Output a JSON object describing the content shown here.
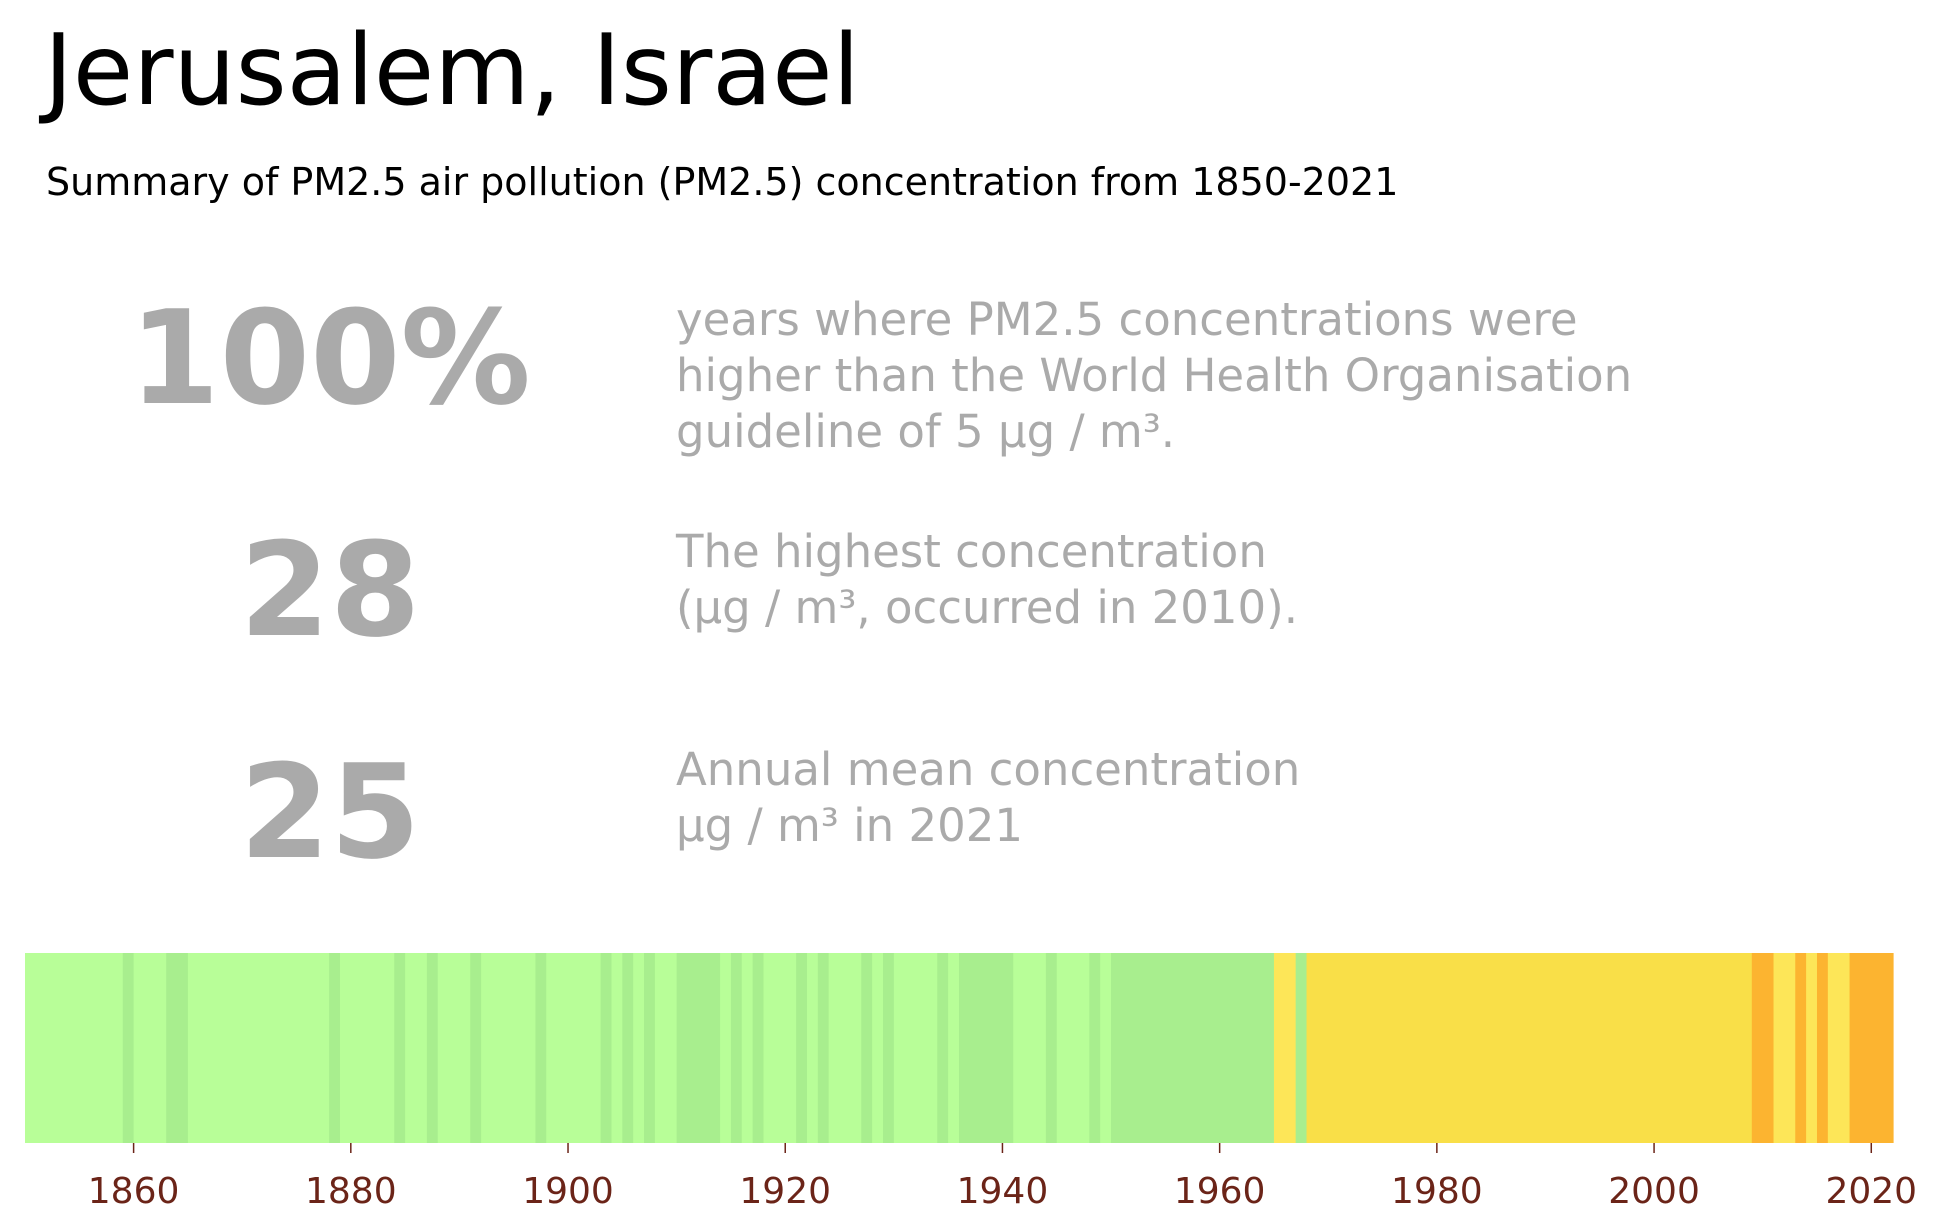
{
  "title": "Jerusalem, Israel",
  "subtitle": "Summary of PM2.5 air pollution (PM2.5) concentration from 1850-2021",
  "stats": [
    {
      "value": "100%",
      "lines": [
        "years where PM2.5 concentrations were",
        "higher than the World Health Organisation",
        "guideline of 5 µg / m³."
      ]
    },
    {
      "value": "28",
      "lines": [
        "The highest concentration",
        "(µg / m³, occurred in 2010)."
      ]
    },
    {
      "value": "25",
      "lines": [
        "Annual mean concentration",
        "µg / m³ in 2021"
      ]
    }
  ],
  "colors": {
    "light_green": "#b8fe98",
    "green": "#a8ee8e",
    "yellow": "#f9df48",
    "light_yellow": "#fde658",
    "orange": "#fcb430",
    "light_orange": "#fec33a",
    "tick_text": "#6b2418",
    "stat_text": "#aaaaaa"
  },
  "chart_data": {
    "type": "heatmap",
    "x_range": [
      1850,
      2022
    ],
    "x_ticks": [
      "1860",
      "1880",
      "1900",
      "1920",
      "1940",
      "1960",
      "1980",
      "2000",
      "2020"
    ],
    "stripes": [
      {
        "from": 1850,
        "to": 1859,
        "color": "light_green"
      },
      {
        "from": 1859,
        "to": 1860,
        "color": "green"
      },
      {
        "from": 1860,
        "to": 1863,
        "color": "light_green"
      },
      {
        "from": 1863,
        "to": 1865,
        "color": "green"
      },
      {
        "from": 1865,
        "to": 1878,
        "color": "light_green"
      },
      {
        "from": 1878,
        "to": 1879,
        "color": "green"
      },
      {
        "from": 1879,
        "to": 1884,
        "color": "light_green"
      },
      {
        "from": 1884,
        "to": 1885,
        "color": "green"
      },
      {
        "from": 1885,
        "to": 1887,
        "color": "light_green"
      },
      {
        "from": 1887,
        "to": 1888,
        "color": "green"
      },
      {
        "from": 1888,
        "to": 1891,
        "color": "light_green"
      },
      {
        "from": 1891,
        "to": 1892,
        "color": "green"
      },
      {
        "from": 1892,
        "to": 1897,
        "color": "light_green"
      },
      {
        "from": 1897,
        "to": 1898,
        "color": "green"
      },
      {
        "from": 1898,
        "to": 1903,
        "color": "light_green"
      },
      {
        "from": 1903,
        "to": 1904,
        "color": "green"
      },
      {
        "from": 1904,
        "to": 1905,
        "color": "light_green"
      },
      {
        "from": 1905,
        "to": 1906,
        "color": "green"
      },
      {
        "from": 1906,
        "to": 1907,
        "color": "light_green"
      },
      {
        "from": 1907,
        "to": 1908,
        "color": "green"
      },
      {
        "from": 1908,
        "to": 1910,
        "color": "light_green"
      },
      {
        "from": 1910,
        "to": 1914,
        "color": "green"
      },
      {
        "from": 1914,
        "to": 1915,
        "color": "light_green"
      },
      {
        "from": 1915,
        "to": 1916,
        "color": "green"
      },
      {
        "from": 1916,
        "to": 1917,
        "color": "light_green"
      },
      {
        "from": 1917,
        "to": 1918,
        "color": "green"
      },
      {
        "from": 1918,
        "to": 1921,
        "color": "light_green"
      },
      {
        "from": 1921,
        "to": 1922,
        "color": "green"
      },
      {
        "from": 1922,
        "to": 1923,
        "color": "light_green"
      },
      {
        "from": 1923,
        "to": 1924,
        "color": "green"
      },
      {
        "from": 1924,
        "to": 1927,
        "color": "light_green"
      },
      {
        "from": 1927,
        "to": 1928,
        "color": "green"
      },
      {
        "from": 1928,
        "to": 1929,
        "color": "light_green"
      },
      {
        "from": 1929,
        "to": 1930,
        "color": "green"
      },
      {
        "from": 1930,
        "to": 1934,
        "color": "light_green"
      },
      {
        "from": 1934,
        "to": 1935,
        "color": "green"
      },
      {
        "from": 1935,
        "to": 1936,
        "color": "light_green"
      },
      {
        "from": 1936,
        "to": 1941,
        "color": "green"
      },
      {
        "from": 1941,
        "to": 1944,
        "color": "light_green"
      },
      {
        "from": 1944,
        "to": 1945,
        "color": "green"
      },
      {
        "from": 1945,
        "to": 1948,
        "color": "light_green"
      },
      {
        "from": 1948,
        "to": 1949,
        "color": "green"
      },
      {
        "from": 1949,
        "to": 1950,
        "color": "light_green"
      },
      {
        "from": 1950,
        "to": 1965,
        "color": "green"
      },
      {
        "from": 1965,
        "to": 1967,
        "color": "light_yellow"
      },
      {
        "from": 1967,
        "to": 1968,
        "color": "green"
      },
      {
        "from": 1968,
        "to": 2009,
        "color": "yellow"
      },
      {
        "from": 2009,
        "to": 2011,
        "color": "orange"
      },
      {
        "from": 2011,
        "to": 2013,
        "color": "light_yellow"
      },
      {
        "from": 2013,
        "to": 2014,
        "color": "orange"
      },
      {
        "from": 2014,
        "to": 2015,
        "color": "light_yellow"
      },
      {
        "from": 2015,
        "to": 2016,
        "color": "orange"
      },
      {
        "from": 2016,
        "to": 2018,
        "color": "light_yellow"
      },
      {
        "from": 2018,
        "to": 2022,
        "color": "orange"
      }
    ]
  }
}
